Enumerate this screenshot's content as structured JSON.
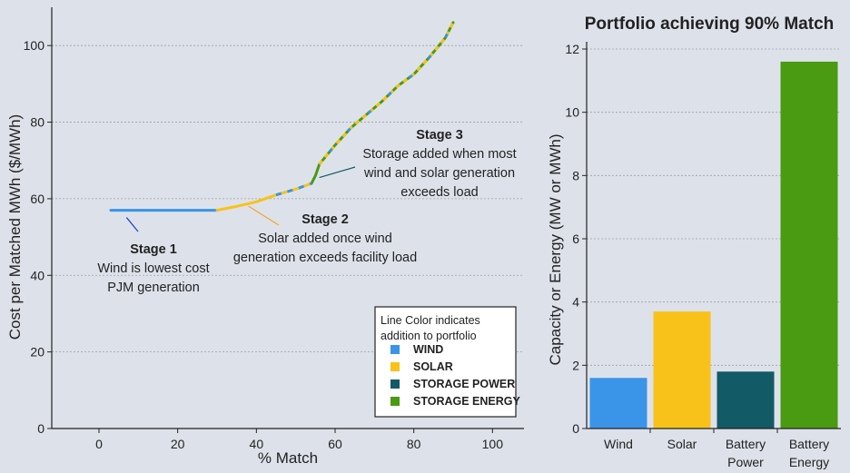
{
  "chart_data": [
    {
      "type": "line",
      "xlabel": "% Match",
      "ylabel": "Cost per Matched MWh ($/MWh)",
      "xlim": [
        -12,
        108
      ],
      "ylim": [
        0,
        110
      ],
      "x_ticks": [
        "0",
        "20",
        "40",
        "60",
        "80",
        "100"
      ],
      "y_ticks": [
        "0",
        "20",
        "40",
        "60",
        "80",
        "100"
      ],
      "grid": "horizontal dotted",
      "legend": {
        "title_lines": [
          "Line Color indicates",
          "addition to portfolio"
        ],
        "placement": "bottom-right",
        "items": [
          {
            "label": "WIND",
            "color": "#3a94e8"
          },
          {
            "label": "SOLAR",
            "color": "#f8c21a"
          },
          {
            "label": "STORAGE POWER",
            "color": "#125a66"
          },
          {
            "label": "STORAGE ENERGY",
            "color": "#4a9a12"
          }
        ]
      },
      "series": [
        {
          "color": "#3a94e8",
          "x": [
            3,
            10,
            20,
            30
          ],
          "y": [
            57,
            57,
            57,
            57
          ]
        },
        {
          "color": "#f8c21a",
          "x": [
            30,
            35,
            40,
            45,
            50,
            54
          ],
          "y": [
            57,
            58,
            59.2,
            61,
            62.5,
            64
          ]
        },
        {
          "color": "#4a9a12",
          "x": [
            54,
            55,
            56,
            60,
            64,
            68,
            72,
            76,
            80,
            84,
            88,
            90
          ],
          "y": [
            64,
            66,
            69,
            74,
            78.5,
            82,
            85.5,
            89.5,
            92.5,
            97,
            102,
            106
          ]
        }
      ],
      "annotations": [
        {
          "head": "Stage 1",
          "lines": [
            "Wind is lowest cost",
            "PJM generation"
          ]
        },
        {
          "head": "Stage 2",
          "lines": [
            "Solar added once wind",
            "generation exceeds facility load"
          ]
        },
        {
          "head": "Stage 3",
          "lines": [
            "Storage added when most",
            "wind and solar generation",
            "exceeds load"
          ]
        }
      ]
    },
    {
      "type": "bar",
      "title": "Portfolio achieving 90% Match",
      "ylabel": "Capacity or Energy (MW or MWh)",
      "ylim": [
        0,
        12
      ],
      "y_ticks": [
        "0",
        "2",
        "4",
        "6",
        "8",
        "10",
        "12"
      ],
      "grid": "horizontal dotted",
      "categories": [
        [
          "Wind"
        ],
        [
          "Solar"
        ],
        [
          "Battery",
          "Power"
        ],
        [
          "Battery",
          "Energy"
        ]
      ],
      "values": [
        1.6,
        3.7,
        1.8,
        11.6
      ],
      "colors": [
        "#3a94e8",
        "#f8c21a",
        "#125a66",
        "#4a9a12"
      ]
    }
  ]
}
